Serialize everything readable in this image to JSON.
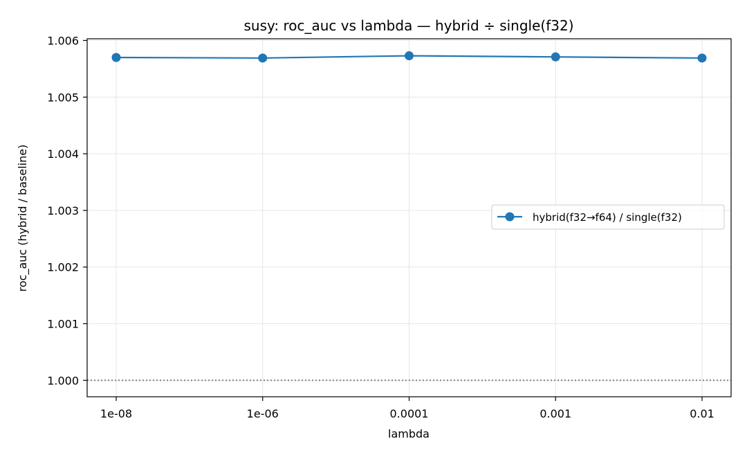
{
  "chart_data": {
    "type": "line",
    "title": "susy: roc_auc vs lambda — hybrid ÷ single(f32)",
    "xlabel": "lambda",
    "ylabel": "roc_auc (hybrid / baseline)",
    "categories": [
      "1e-08",
      "1e-06",
      "0.0001",
      "0.001",
      "0.01"
    ],
    "series": [
      {
        "name": "hybrid(f32→f64) / single(f32)",
        "color": "#1f77b4",
        "marker": "circle",
        "values": [
          1.0057,
          1.00569,
          1.00573,
          1.00571,
          1.00569
        ]
      }
    ],
    "reference_line": {
      "y": 1.0,
      "style": "dotted",
      "color": "#808080"
    },
    "ylim": [
      0.99971,
      1.00603
    ],
    "yticks": [
      1.0,
      1.001,
      1.002,
      1.003,
      1.004,
      1.005,
      1.006
    ],
    "ytick_labels": [
      "1.000",
      "1.001",
      "1.002",
      "1.003",
      "1.004",
      "1.005",
      "1.006"
    ],
    "grid": true,
    "legend_position": "center-right"
  }
}
